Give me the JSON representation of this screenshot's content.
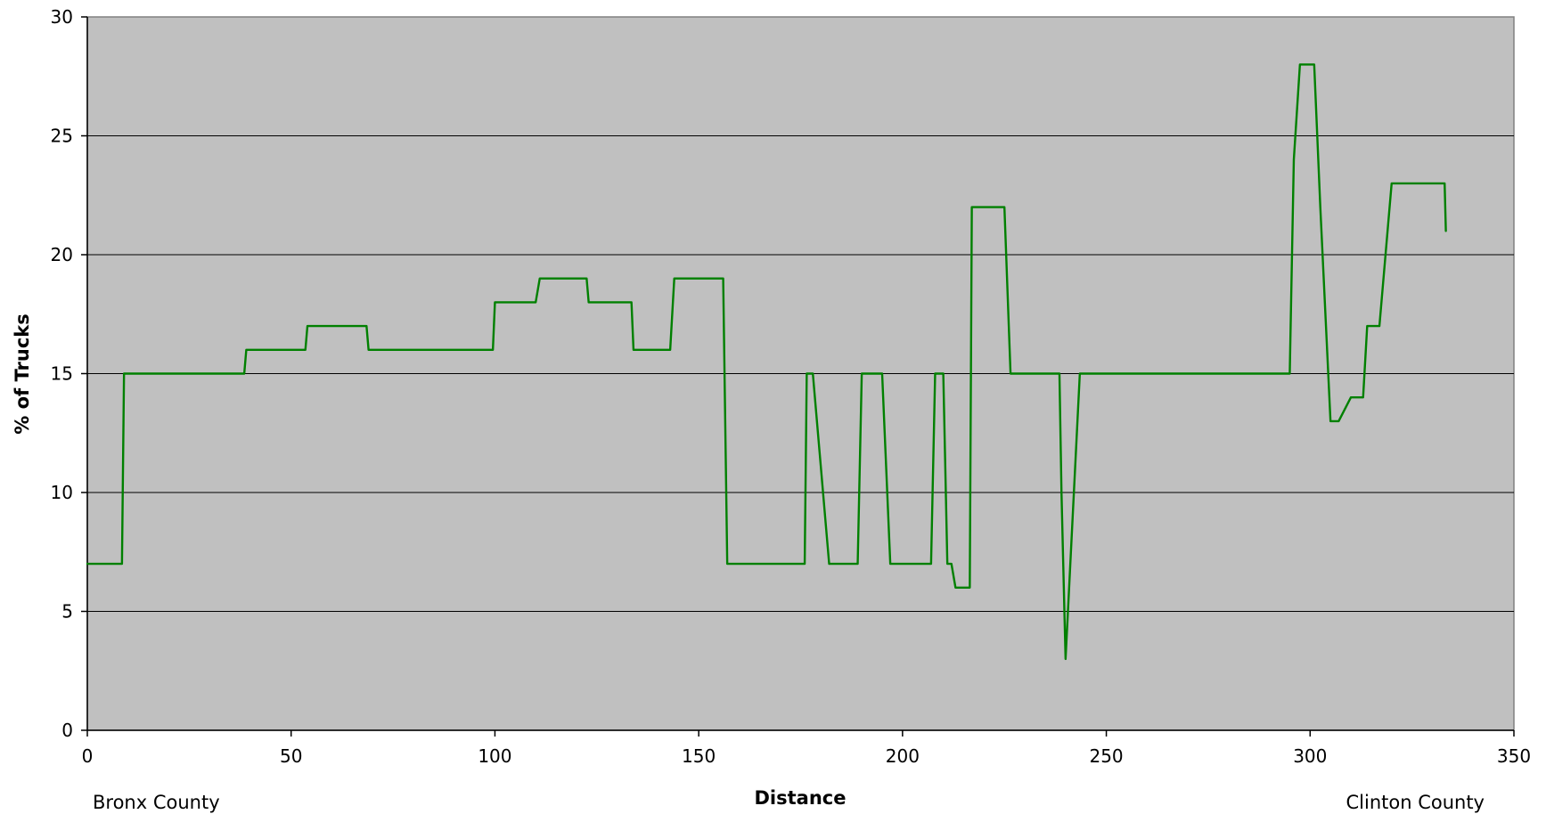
{
  "chart_data": {
    "type": "line",
    "xlabel": "Distance",
    "ylabel": "% of Trucks",
    "xlim": [
      0,
      350
    ],
    "ylim": [
      0,
      30
    ],
    "x_ticks": [
      0,
      50,
      100,
      150,
      200,
      250,
      300,
      350
    ],
    "y_ticks": [
      0,
      5,
      10,
      15,
      20,
      25,
      30
    ],
    "grid": "horizontal",
    "legend": "none",
    "annotations": {
      "start_label": "Bronx County",
      "end_label": "Clinton County"
    },
    "colors": {
      "plot_background": "#c0c0c0",
      "line": "#008000",
      "gridline": "#000000"
    },
    "series": [
      {
        "x": [
          0,
          8.5,
          9,
          38.5,
          39,
          53.5,
          54,
          68.5,
          69,
          99.5,
          100,
          110,
          111,
          122.5,
          123,
          133.5,
          134,
          143,
          144,
          156,
          157,
          176,
          176.5,
          178,
          182,
          189,
          190,
          193,
          195,
          197,
          207,
          208,
          210,
          211,
          212,
          213,
          216.5,
          217,
          219,
          221,
          225,
          226.5,
          237.5,
          238.5,
          239,
          240,
          243.5,
          245,
          295,
          296,
          297.5,
          299,
          301,
          302.5,
          305,
          307,
          310,
          313,
          314,
          317,
          318,
          320,
          322,
          325,
          333,
          333.3
        ],
        "y": [
          7,
          7,
          15,
          15,
          16,
          16,
          17,
          17,
          16,
          16,
          18,
          18,
          19,
          19,
          18,
          18,
          16,
          16,
          19,
          19,
          7,
          7,
          15,
          15,
          7,
          7,
          15,
          15,
          15,
          7,
          7,
          15,
          15,
          7,
          7,
          6,
          6,
          22,
          22,
          22,
          22,
          15,
          15,
          15,
          10,
          3,
          15,
          15,
          15,
          24,
          28,
          28,
          28,
          22,
          13,
          13,
          14,
          14,
          17,
          17,
          19,
          23,
          23,
          23,
          23,
          21
        ]
      }
    ]
  }
}
